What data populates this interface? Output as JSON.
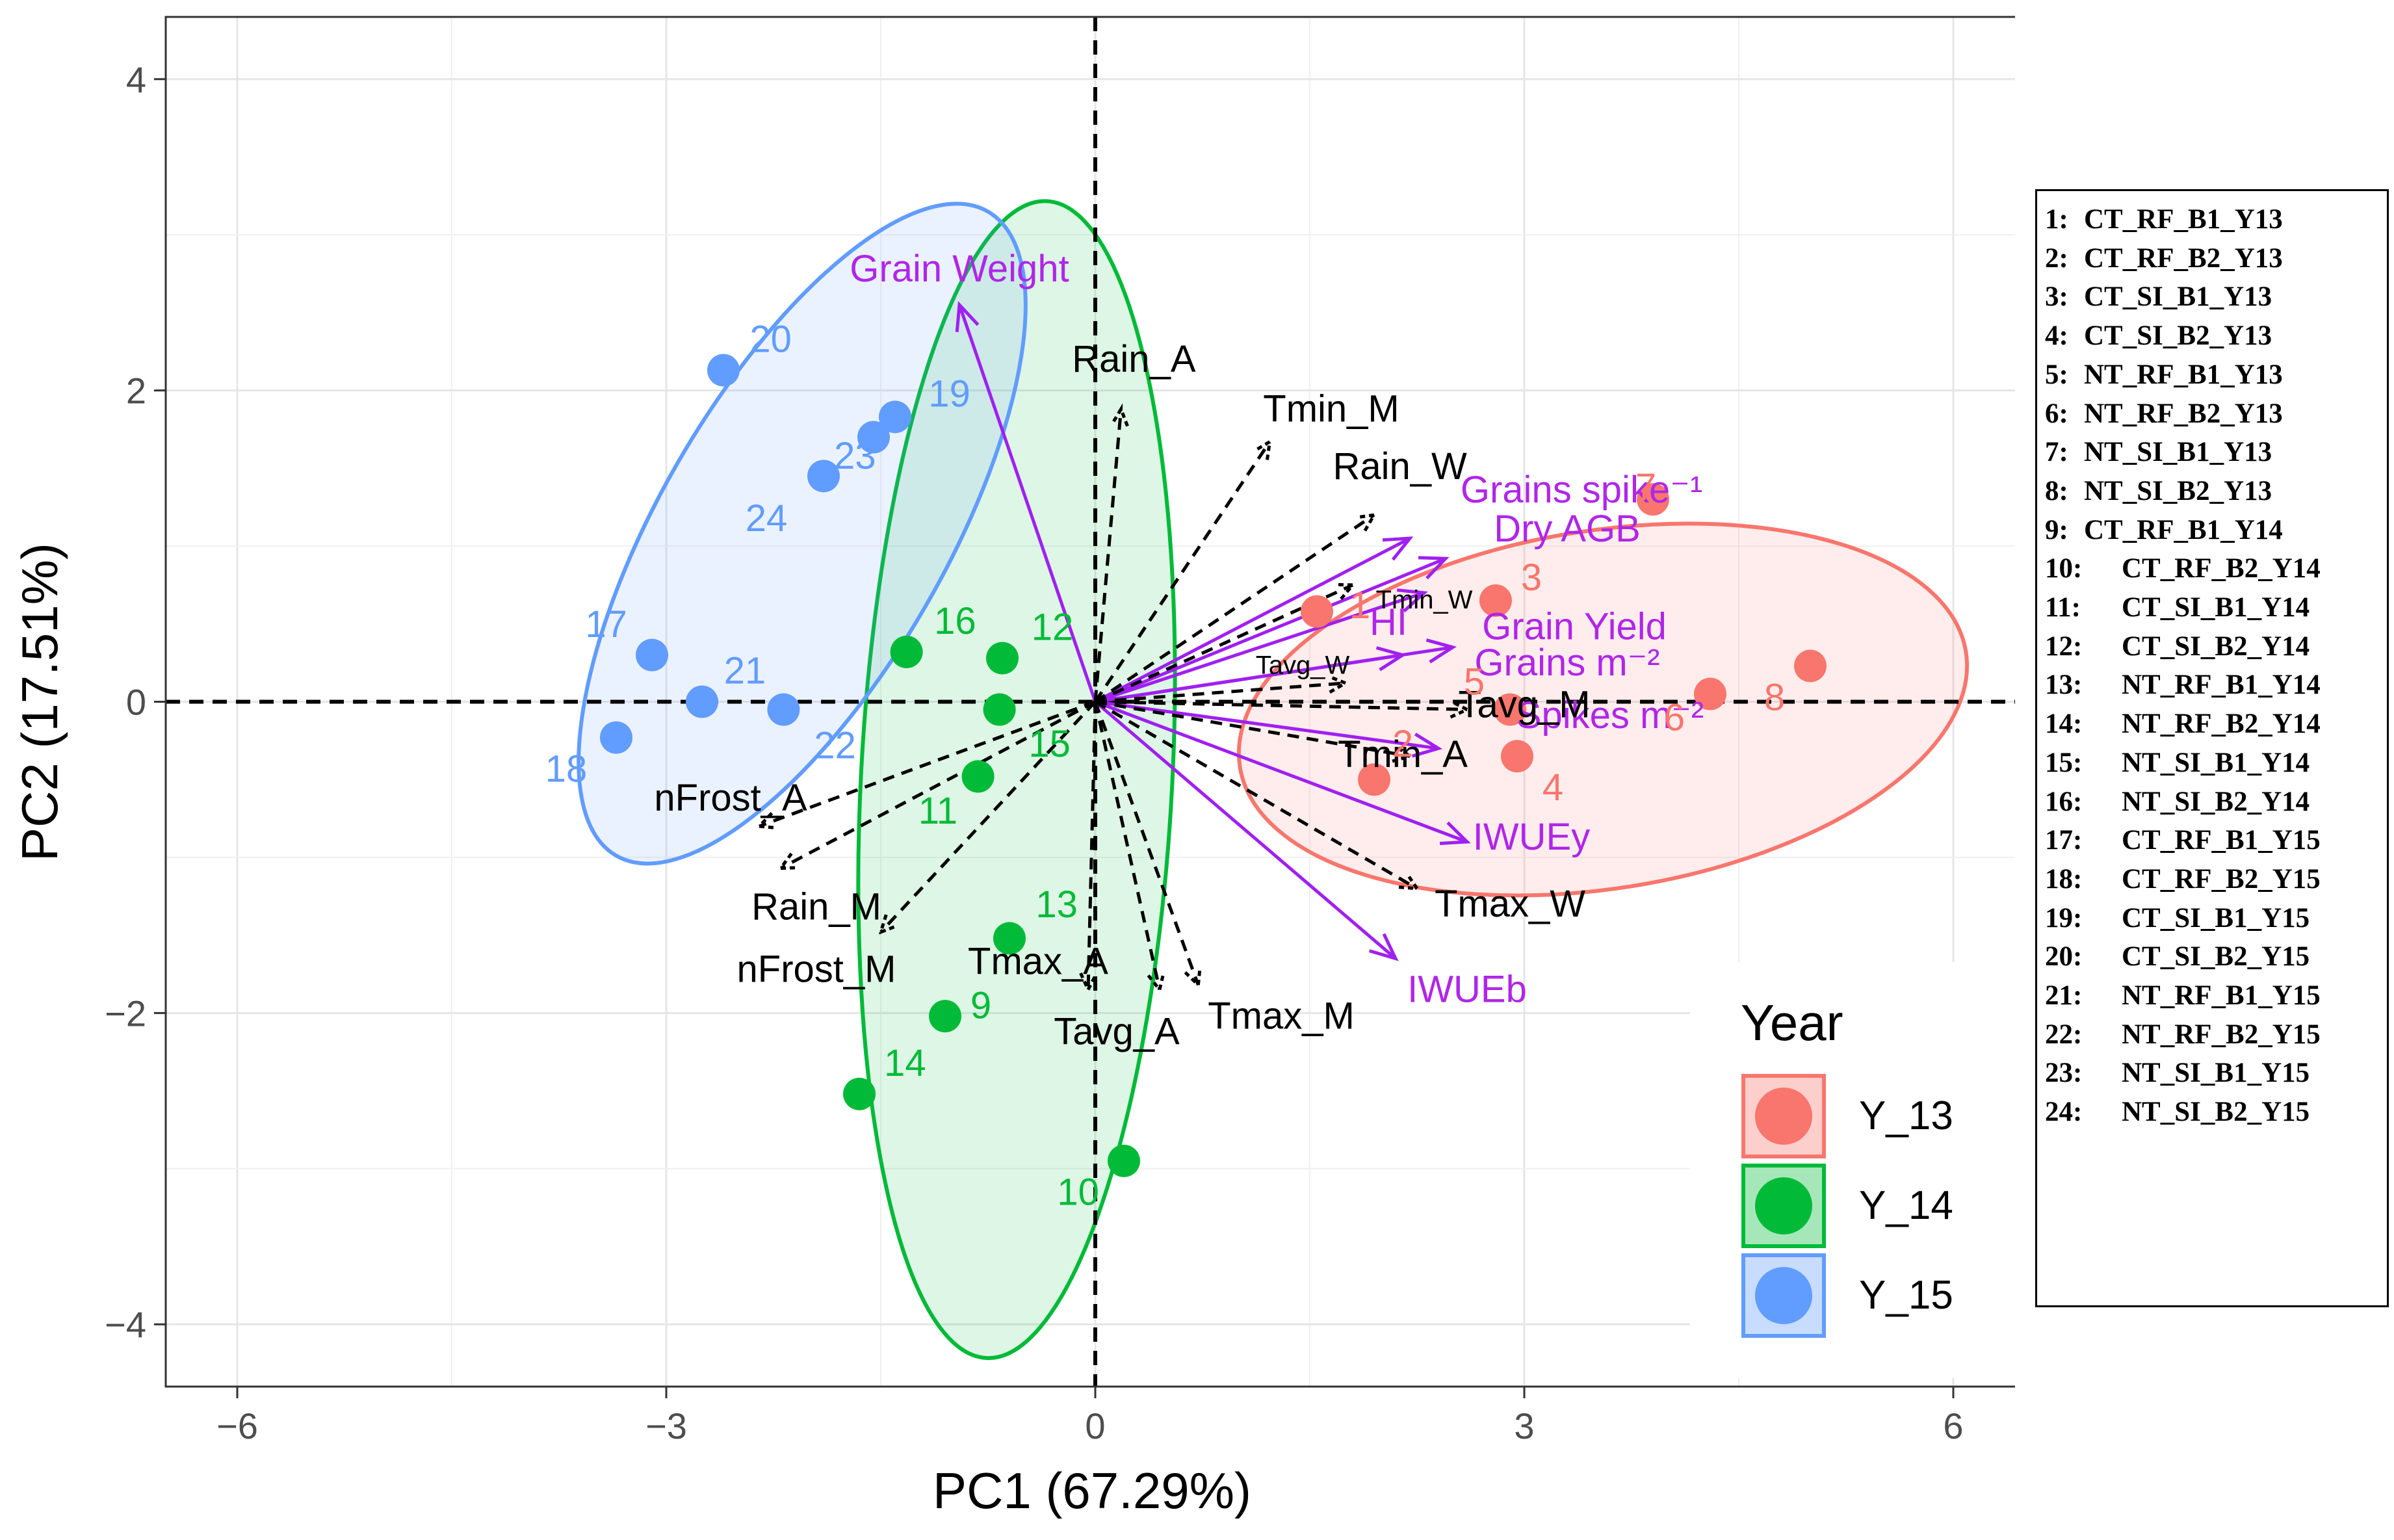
{
  "chart_data": {
    "type": "scatter",
    "subtype": "PCA biplot",
    "xlabel": "PC1 (67.29%)",
    "ylabel": "PC2 (17.51%)",
    "xlim": [
      -6.5,
      6.5
    ],
    "ylim": [
      -4.4,
      4.4
    ],
    "xticks": [
      -6,
      -3,
      0,
      3,
      6
    ],
    "xtick_labels": [
      "−6",
      "−3",
      "0",
      "3",
      "6"
    ],
    "yticks": [
      -4,
      -2,
      0,
      2,
      4
    ],
    "ytick_labels": [
      "−4",
      "−2",
      "0",
      "2",
      "4"
    ],
    "grid": true,
    "legend": {
      "title": "Year",
      "position": "bottom-right",
      "entries": [
        {
          "label": "Y_13",
          "color": "#F8766D"
        },
        {
          "label": "Y_14",
          "color": "#00BA38"
        },
        {
          "label": "Y_15",
          "color": "#619CFF"
        }
      ]
    },
    "series": [
      {
        "name": "Y_13",
        "color": "#F8766D",
        "points": [
          {
            "label": "1",
            "x": 1.55,
            "y": 0.58,
            "lx": 1.85,
            "ly": 0.62
          },
          {
            "label": "2",
            "x": 1.95,
            "y": -0.5,
            "lx": 2.15,
            "ly": -0.27
          },
          {
            "label": "3",
            "x": 2.8,
            "y": 0.65,
            "lx": 3.05,
            "ly": 0.8
          },
          {
            "label": "4",
            "x": 2.95,
            "y": -0.35,
            "lx": 3.2,
            "ly": -0.55
          },
          {
            "label": "5",
            "x": 2.9,
            "y": -0.05,
            "lx": 2.65,
            "ly": 0.13
          },
          {
            "label": "6",
            "x": 4.3,
            "y": 0.05,
            "lx": 4.05,
            "ly": -0.1
          },
          {
            "label": "7",
            "x": 3.9,
            "y": 1.3,
            "lx": 3.85,
            "ly": 1.38
          },
          {
            "label": "8",
            "x": 5.0,
            "y": 0.23,
            "lx": 4.75,
            "ly": 0.03
          }
        ],
        "ellipse": {
          "cx": 3.55,
          "cy": -0.05,
          "rx": 2.57,
          "ry": 1.15,
          "angle": 9
        }
      },
      {
        "name": "Y_14",
        "color": "#00BA38",
        "points": [
          {
            "label": "9",
            "x": -1.05,
            "y": -2.02,
            "lx": -0.8,
            "ly": -1.95
          },
          {
            "label": "10",
            "x": 0.2,
            "y": -2.95,
            "lx": -0.12,
            "ly": -3.15
          },
          {
            "label": "11",
            "x": -0.82,
            "y": -0.48,
            "lx": -1.1,
            "ly": -0.7
          },
          {
            "label": "12",
            "x": -0.65,
            "y": 0.28,
            "lx": -0.3,
            "ly": 0.48
          },
          {
            "label": "13",
            "x": -0.6,
            "y": -1.52,
            "lx": -0.27,
            "ly": -1.3
          },
          {
            "label": "14",
            "x": -1.65,
            "y": -2.52,
            "lx": -1.33,
            "ly": -2.32
          },
          {
            "label": "15",
            "x": -0.67,
            "y": -0.05,
            "lx": -0.32,
            "ly": -0.27
          },
          {
            "label": "16",
            "x": -1.32,
            "y": 0.32,
            "lx": -0.98,
            "ly": 0.52
          }
        ],
        "ellipse": {
          "cx": -0.55,
          "cy": -0.5,
          "rx": 4.05,
          "ry": 1.0,
          "angle": 87
        }
      },
      {
        "name": "Y_15",
        "color": "#619CFF",
        "points": [
          {
            "label": "17",
            "x": -3.1,
            "y": 0.3,
            "lx": -3.42,
            "ly": 0.5
          },
          {
            "label": "18",
            "x": -3.35,
            "y": -0.23,
            "lx": -3.7,
            "ly": -0.43
          },
          {
            "label": "19",
            "x": -1.4,
            "y": 1.83,
            "lx": -1.02,
            "ly": 1.98
          },
          {
            "label": "20",
            "x": -2.6,
            "y": 2.13,
            "lx": -2.27,
            "ly": 2.33
          },
          {
            "label": "21",
            "x": -2.75,
            "y": 0.0,
            "lx": -2.45,
            "ly": 0.2
          },
          {
            "label": "22",
            "x": -2.18,
            "y": -0.05,
            "lx": -1.82,
            "ly": -0.28
          },
          {
            "label": "23",
            "x": -1.55,
            "y": 1.7,
            "lx": -1.68,
            "ly": 1.58
          },
          {
            "label": "24",
            "x": -1.9,
            "y": 1.45,
            "lx": -2.3,
            "ly": 1.18
          }
        ],
        "ellipse": {
          "cx": -2.05,
          "cy": 1.08,
          "rx": 2.6,
          "ry": 0.92,
          "angle": 60
        }
      }
    ],
    "variable_vectors": [
      {
        "name": "Grain Weight",
        "x": -0.95,
        "y": 2.55,
        "color": "#A020F0",
        "style": "solid",
        "lx": -0.95,
        "ly": 2.7
      },
      {
        "name": "Grains spike⁻¹",
        "x": 2.2,
        "y": 1.05,
        "color": "#A020F0",
        "style": "solid",
        "lx": 3.4,
        "ly": 1.28
      },
      {
        "name": "Dry AGB",
        "x": 2.45,
        "y": 0.92,
        "color": "#A020F0",
        "style": "solid",
        "lx": 3.3,
        "ly": 1.03
      },
      {
        "name": "HI",
        "x": 2.15,
        "y": 0.3,
        "color": "#A020F0",
        "style": "solid",
        "lx": 2.05,
        "ly": 0.43
      },
      {
        "name": "Grain Yield",
        "x": 2.5,
        "y": 0.35,
        "color": "#A020F0",
        "style": "solid",
        "lx": 3.35,
        "ly": 0.4
      },
      {
        "name": "Grains m⁻²",
        "x": 2.3,
        "y": 0.7,
        "color": "#A020F0",
        "style": "solid",
        "lx": 3.3,
        "ly": 0.17
      },
      {
        "name": "Spikes m⁻²",
        "x": 2.4,
        "y": -0.3,
        "color": "#A020F0",
        "style": "solid",
        "lx": 3.6,
        "ly": -0.17
      },
      {
        "name": "IWUEy",
        "x": 2.6,
        "y": -0.9,
        "color": "#A020F0",
        "style": "solid",
        "lx": 3.05,
        "ly": -0.95
      },
      {
        "name": "IWUEb",
        "x": 2.1,
        "y": -1.65,
        "color": "#A020F0",
        "style": "solid",
        "lx": 2.6,
        "ly": -1.93
      },
      {
        "name": "Rain_A",
        "x": 0.18,
        "y": 1.88,
        "color": "#000000",
        "style": "dashed",
        "lx": 0.27,
        "ly": 2.12
      },
      {
        "name": "Tmin_M",
        "x": 1.22,
        "y": 1.67,
        "color": "#000000",
        "style": "dashed",
        "lx": 1.65,
        "ly": 1.8
      },
      {
        "name": "Rain_W",
        "x": 1.95,
        "y": 1.2,
        "color": "#000000",
        "style": "dashed",
        "lx": 2.13,
        "ly": 1.43
      },
      {
        "name": "Tmin_W",
        "x": 1.8,
        "y": 0.75,
        "color": "#000000",
        "style": "dashed",
        "lx": 2.3,
        "ly": 0.6,
        "small": true
      },
      {
        "name": "Tavg_W",
        "x": 1.75,
        "y": 0.12,
        "color": "#000000",
        "style": "dashed",
        "lx": 1.45,
        "ly": 0.18,
        "small": true
      },
      {
        "name": "Tavg_M",
        "x": 2.6,
        "y": -0.05,
        "color": "#000000",
        "style": "dashed",
        "lx": 3.0,
        "ly": -0.1
      },
      {
        "name": "Tmin_A",
        "x": 2.2,
        "y": -0.35,
        "color": "#000000",
        "style": "dashed",
        "lx": 2.15,
        "ly": -0.42
      },
      {
        "name": "Tmax_W",
        "x": 2.25,
        "y": -1.2,
        "color": "#000000",
        "style": "dashed",
        "lx": 2.9,
        "ly": -1.38
      },
      {
        "name": "nFrost_A",
        "x": -2.35,
        "y": -0.8,
        "color": "#000000",
        "style": "dashed",
        "lx": -2.55,
        "ly": -0.7
      },
      {
        "name": "Rain_M",
        "x": -2.2,
        "y": -1.07,
        "color": "#000000",
        "style": "dashed",
        "lx": -1.95,
        "ly": -1.4
      },
      {
        "name": "nFrost_M",
        "x": -1.5,
        "y": -1.48,
        "color": "#000000",
        "style": "dashed",
        "lx": -1.95,
        "ly": -1.8
      },
      {
        "name": "Tmax_A",
        "x": -0.05,
        "y": -1.85,
        "color": "#000000",
        "style": "dashed",
        "lx": -0.4,
        "ly": -1.75
      },
      {
        "name": "Tavg_A",
        "x": 0.45,
        "y": -1.85,
        "color": "#000000",
        "style": "dashed",
        "lx": 0.15,
        "ly": -2.2
      },
      {
        "name": "Tmax_M",
        "x": 0.72,
        "y": -1.82,
        "color": "#000000",
        "style": "dashed",
        "lx": 1.3,
        "ly": -2.1
      }
    ]
  },
  "key": {
    "items": [
      {
        "num": "1:",
        "label": "CT_RF_B1_Y13"
      },
      {
        "num": "2:",
        "label": "CT_RF_B2_Y13"
      },
      {
        "num": "3:",
        "label": "CT_SI_B1_Y13"
      },
      {
        "num": "4:",
        "label": "CT_SI_B2_Y13"
      },
      {
        "num": "5:",
        "label": "NT_RF_B1_Y13"
      },
      {
        "num": "6:",
        "label": "NT_RF_B2_Y13"
      },
      {
        "num": "7:",
        "label": "NT_SI_B1_Y13"
      },
      {
        "num": "8:",
        "label": "NT_SI_B2_Y13"
      },
      {
        "num": "9:",
        "label": "CT_RF_B1_Y14"
      },
      {
        "num": "10:",
        "label": "CT_RF_B2_Y14"
      },
      {
        "num": "11:",
        "label": "CT_SI_B1_Y14"
      },
      {
        "num": "12:",
        "label": "CT_SI_B2_Y14"
      },
      {
        "num": "13:",
        "label": "NT_RF_B1_Y14"
      },
      {
        "num": "14:",
        "label": "NT_RF_B2_Y14"
      },
      {
        "num": "15:",
        "label": "NT_SI_B1_Y14"
      },
      {
        "num": "16:",
        "label": "NT_SI_B2_Y14"
      },
      {
        "num": "17:",
        "label": "CT_RF_B1_Y15"
      },
      {
        "num": "18:",
        "label": "CT_RF_B2_Y15"
      },
      {
        "num": "19:",
        "label": "CT_SI_B1_Y15"
      },
      {
        "num": "20:",
        "label": "CT_SI_B2_Y15"
      },
      {
        "num": "21:",
        "label": "NT_RF_B1_Y15"
      },
      {
        "num": "22:",
        "label": "NT_RF_B2_Y15"
      },
      {
        "num": "23:",
        "label": "NT_SI_B1_Y15"
      },
      {
        "num": "24:",
        "label": "NT_SI_B2_Y15"
      }
    ]
  }
}
